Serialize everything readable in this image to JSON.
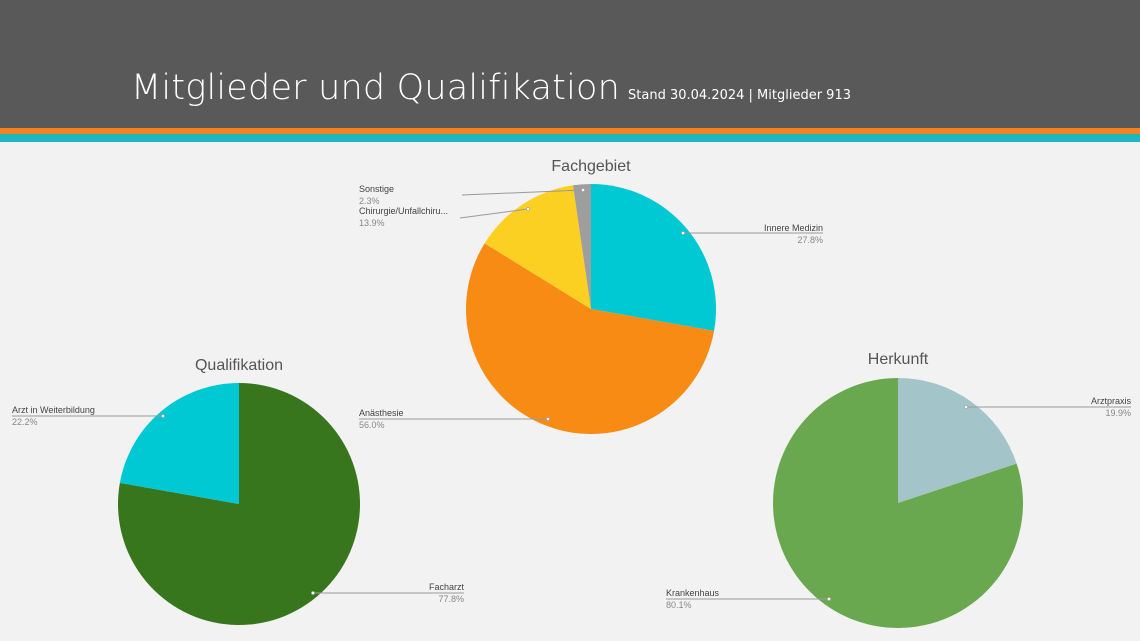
{
  "header": {
    "title": "Mitglieder und Qualifikation",
    "subtitle": "Stand 30.04.2024 | Mitglieder 913"
  },
  "colors": {
    "header_bg": "#595959",
    "stripe_orange": "#f58220",
    "stripe_teal": "#1fb6c1"
  },
  "chart_data": [
    {
      "id": "fachgebiet",
      "type": "pie",
      "title": "Fachgebiet",
      "legend": "none",
      "slices": [
        {
          "label": "Innere Medizin",
          "pct_text": "27.8%",
          "value": 27.8,
          "color": "#00c9d3"
        },
        {
          "label": "Anästhesie",
          "pct_text": "56.0%",
          "value": 56.0,
          "color": "#f88b14"
        },
        {
          "label": "Chirurgie/Unfallchiru...",
          "pct_text": "13.9%",
          "value": 13.9,
          "color": "#fbd022"
        },
        {
          "label": "Sonstige",
          "pct_text": "2.3%",
          "value": 2.3,
          "color": "#9e9e9e"
        }
      ]
    },
    {
      "id": "qualifikation",
      "type": "pie",
      "title": "Qualifikation",
      "legend": "none",
      "slices": [
        {
          "label": "Facharzt",
          "pct_text": "77.8%",
          "value": 77.8,
          "color": "#38761d"
        },
        {
          "label": "Arzt in Weiterbildung",
          "pct_text": "22.2%",
          "value": 22.2,
          "color": "#00c9d3"
        }
      ]
    },
    {
      "id": "herkunft",
      "type": "pie",
      "title": "Herkunft",
      "legend": "none",
      "slices": [
        {
          "label": "Arztpraxis",
          "pct_text": "19.9%",
          "value": 19.9,
          "color": "#a3c5c9"
        },
        {
          "label": "Krankenhaus",
          "pct_text": "80.1%",
          "value": 80.1,
          "color": "#6aa84f"
        }
      ]
    }
  ]
}
